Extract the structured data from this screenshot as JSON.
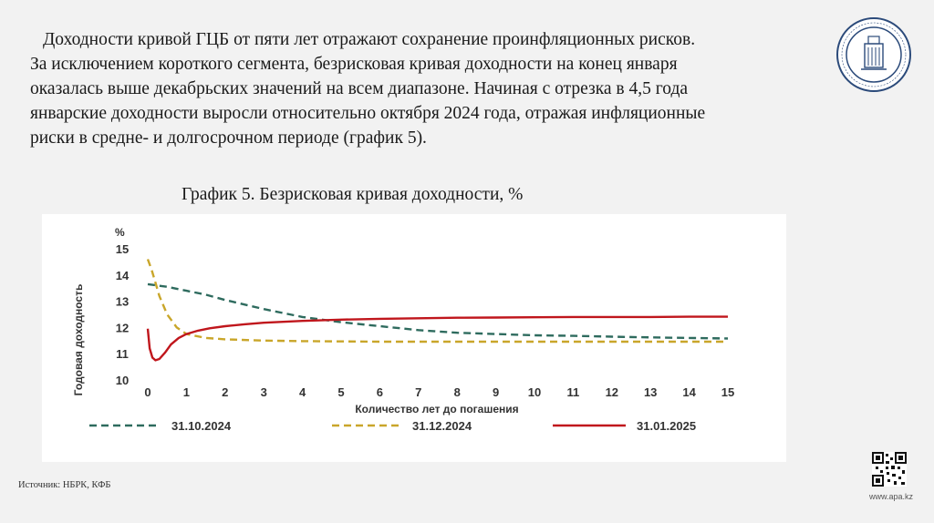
{
  "intro": {
    "lines": [
      "Доходности кривой ГЦБ от пяти лет отражают сохранение проинфляционных рисков.",
      "За исключением короткого сегмента, безрисковая кривая доходности на конец января",
      "оказалась выше декабрьских значений на всем диапазоне. Начиная с отрезка в 4,5 года",
      "январские доходности выросли относительно октября 2024 года, отражая инфляционные",
      "риски в средне- и долгосрочном периоде (график 5)."
    ]
  },
  "chart_title": "График 5. Безрисковая кривая доходности, %",
  "source": "Источник: НБРК, КФБ",
  "site": "www.apa.kz",
  "colors": {
    "oct": "#2e6b5e",
    "dec": "#c9a62a",
    "jan": "#c0161c",
    "axis_text": "#333333"
  },
  "chart_data": {
    "type": "line",
    "ylabel": "Годовая доходность",
    "yunit": "%",
    "xlabel": "Количество лет до погашения",
    "xlim": [
      0,
      15
    ],
    "ylim": [
      10,
      15
    ],
    "xticks": [
      0,
      1,
      2,
      3,
      4,
      5,
      6,
      7,
      8,
      9,
      10,
      11,
      12,
      13,
      14,
      15
    ],
    "yticks": [
      10,
      11,
      12,
      13,
      14,
      15
    ],
    "grid": false,
    "legend_position": "bottom",
    "series": [
      {
        "name": "31.10.2024",
        "style": "dashed",
        "color_key": "oct",
        "x": [
          0,
          0.5,
          1,
          1.5,
          2,
          3,
          4,
          5,
          6,
          7,
          8,
          9,
          10,
          11,
          12,
          13,
          14,
          15
        ],
        "y": [
          13.65,
          13.55,
          13.4,
          13.25,
          13.05,
          12.7,
          12.4,
          12.2,
          12.05,
          11.9,
          11.8,
          11.75,
          11.7,
          11.68,
          11.65,
          11.62,
          11.6,
          11.58
        ]
      },
      {
        "name": "31.12.2024",
        "style": "dashed",
        "color_key": "dec",
        "x": [
          0,
          0.1,
          0.2,
          0.3,
          0.5,
          0.75,
          1,
          1.5,
          2,
          3,
          4,
          5,
          6,
          7,
          8,
          9,
          10,
          11,
          12,
          13,
          14,
          15
        ],
        "y": [
          14.6,
          14.2,
          13.7,
          13.2,
          12.5,
          12.0,
          11.75,
          11.6,
          11.55,
          11.5,
          11.48,
          11.47,
          11.46,
          11.46,
          11.46,
          11.46,
          11.46,
          11.46,
          11.46,
          11.46,
          11.46,
          11.46
        ]
      },
      {
        "name": "31.01.2025",
        "style": "solid",
        "color_key": "jan",
        "x": [
          0,
          0.05,
          0.12,
          0.2,
          0.3,
          0.45,
          0.6,
          0.8,
          1,
          1.3,
          1.6,
          2,
          2.5,
          3,
          4,
          5,
          6,
          7,
          8,
          9,
          10,
          11,
          12,
          13,
          14,
          15
        ],
        "y": [
          11.95,
          11.2,
          10.85,
          10.75,
          10.8,
          11.05,
          11.35,
          11.6,
          11.75,
          11.88,
          11.97,
          12.05,
          12.12,
          12.18,
          12.25,
          12.3,
          12.33,
          12.35,
          12.37,
          12.38,
          12.39,
          12.4,
          12.4,
          12.4,
          12.41,
          12.41
        ]
      }
    ]
  }
}
